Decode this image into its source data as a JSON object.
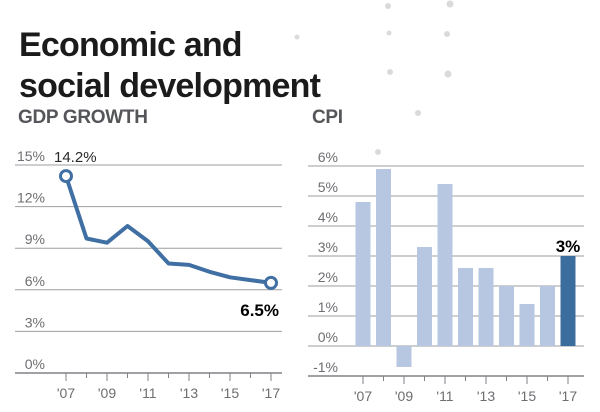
{
  "page_title": {
    "line1": "Economic and",
    "line2": "social development"
  },
  "colors": {
    "accent_line": "#3f6fa3",
    "bar_light": "#b7c6e1",
    "bar_dark": "#3c6d9f",
    "grid": "#9c9ea0",
    "axis": "#808285",
    "label_gray": "#6d6e71",
    "annotation_dark": "#2a2a2a",
    "annotation_bold": "#000000",
    "title_black": "#1b1b1b",
    "section_title": "#55565a",
    "dot_gray": "#dadada"
  },
  "chart_data": [
    {
      "type": "line",
      "title": "GDP GROWTH",
      "years": [
        2007,
        2008,
        2009,
        2010,
        2011,
        2012,
        2013,
        2014,
        2015,
        2016,
        2017
      ],
      "x_tick_labels": [
        "'07",
        "'09",
        "'11",
        "'13",
        "'15",
        "'17"
      ],
      "values": [
        14.2,
        9.7,
        9.4,
        10.6,
        9.5,
        7.9,
        7.8,
        7.3,
        6.9,
        6.7,
        6.5
      ],
      "ylim": [
        0,
        15
      ],
      "ytick_labels": [
        "15%",
        "12%",
        "9%",
        "6%",
        "3%",
        "0%"
      ],
      "grid": true,
      "legend": "none",
      "first_point_label": "14.2%",
      "last_point_label": "6.5%",
      "markers": "first-and-last-open-circles"
    },
    {
      "type": "bar",
      "title": "CPI",
      "years": [
        2007,
        2008,
        2009,
        2010,
        2011,
        2012,
        2013,
        2014,
        2015,
        2016,
        2017
      ],
      "x_tick_labels": [
        "'07",
        "'09",
        "'11",
        "'13",
        "'15",
        "'17"
      ],
      "values": [
        4.8,
        5.9,
        -0.7,
        3.3,
        5.4,
        2.6,
        2.6,
        2.0,
        1.4,
        2.0,
        3.0
      ],
      "ylim": [
        -1,
        6
      ],
      "ytick_labels": [
        "6%",
        "5%",
        "4%",
        "3%",
        "2%",
        "1%",
        "0%",
        "-1%"
      ],
      "grid": true,
      "legend": "none",
      "highlight_last_bar": true,
      "last_bar_label": "3%"
    }
  ]
}
